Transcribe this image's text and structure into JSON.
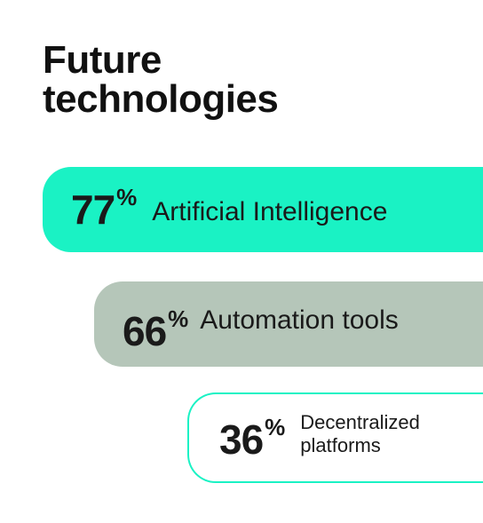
{
  "title_lines": [
    "Future",
    "technologies"
  ],
  "chart_data": {
    "type": "bar",
    "title": "Future technologies",
    "categories": [
      "Artificial Intelligence",
      "Automation tools",
      "Decentralized platforms"
    ],
    "values": [
      77,
      66,
      36
    ],
    "unit": "%",
    "ylim": [
      0,
      100
    ]
  },
  "bars": [
    {
      "value": "77",
      "sign": "%",
      "label": "Artificial Intelligence",
      "color": "#1af2c4"
    },
    {
      "value": "66",
      "sign": "%",
      "label": "Automation tools",
      "color": "#b5c6b9"
    },
    {
      "value": "36",
      "sign": "%",
      "label": "Decentralized platforms",
      "color": "#1af2c4"
    }
  ]
}
